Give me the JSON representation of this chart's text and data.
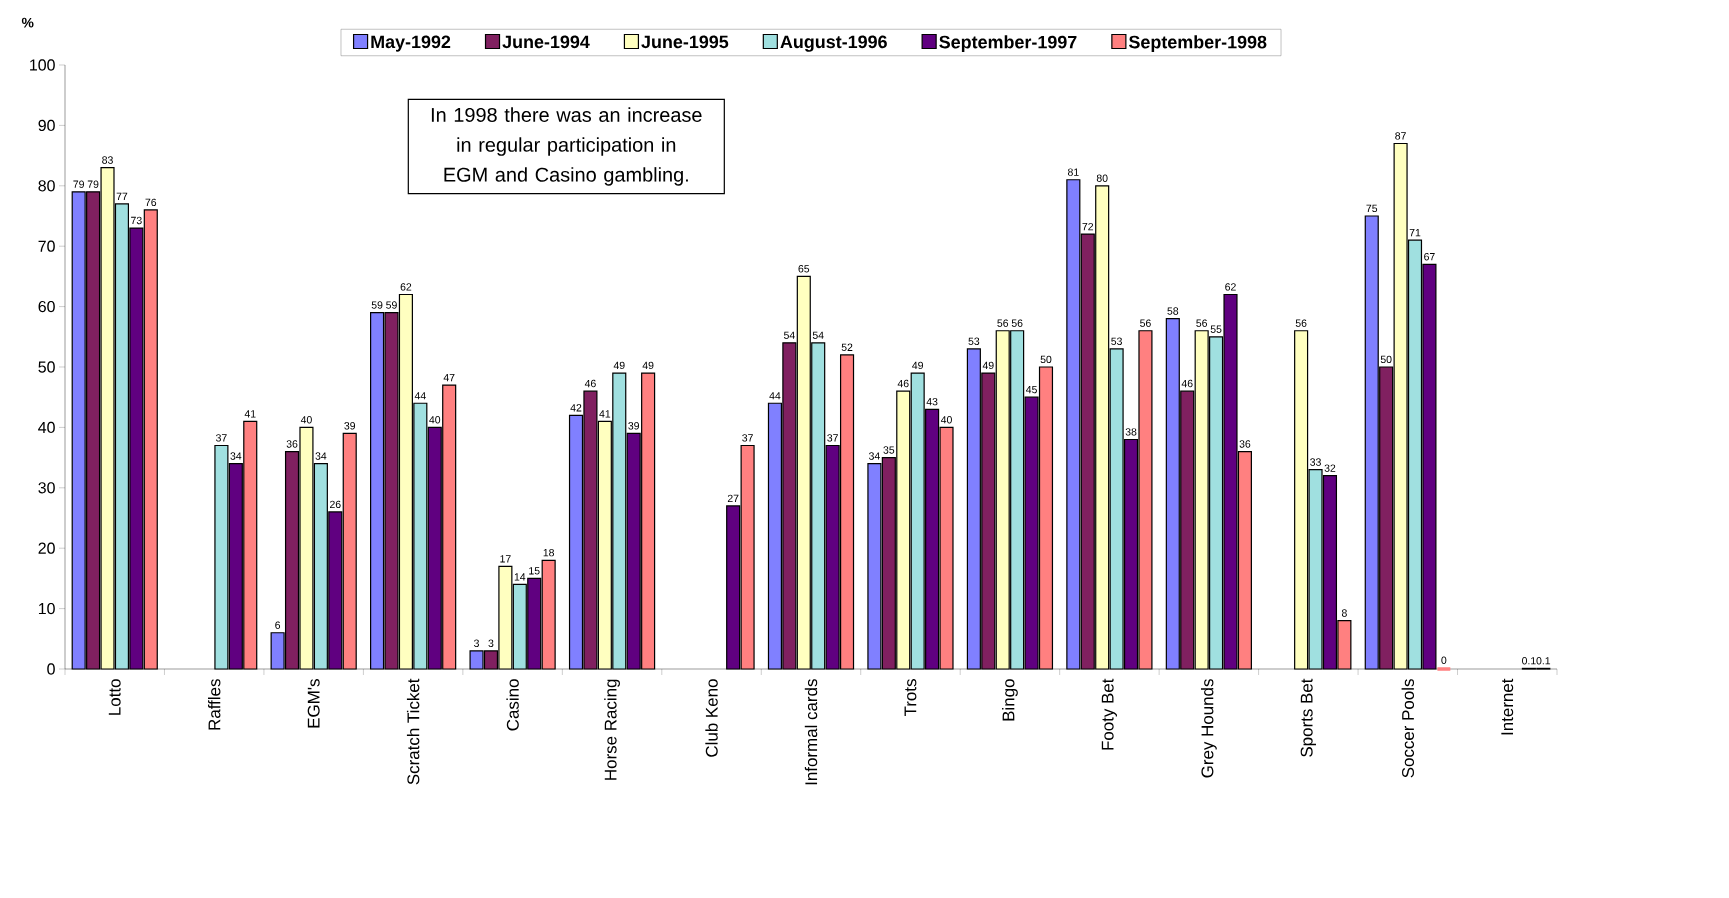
{
  "chart_data": {
    "type": "bar",
    "ylabel": "%",
    "annotations": [
      "In 1998 there was an increase in regular participation in EGM and Casino gambling."
    ],
    "categories": [
      "Lotto",
      "Raffles",
      "EGM's",
      "Scratch Ticket",
      "Casino",
      "Horse Racing",
      "Club Keno",
      "Informal cards",
      "Trots",
      "Bingo",
      "Footy Bet",
      "Grey Hounds",
      "Sports Bet",
      "Soccer Pools",
      "Internet"
    ],
    "series": [
      {
        "name": "May-1992",
        "color": "#8080ff",
        "values": [
          79,
          null,
          6,
          59,
          3,
          42,
          null,
          44,
          34,
          53,
          81,
          58,
          null,
          75,
          null
        ]
      },
      {
        "name": "June-1994",
        "color": "#802060",
        "values": [
          79,
          null,
          36,
          59,
          3,
          46,
          null,
          54,
          35,
          49,
          72,
          46,
          null,
          50,
          null
        ]
      },
      {
        "name": "June-1995",
        "color": "#ffffc0",
        "values": [
          83,
          null,
          40,
          62,
          17,
          41,
          null,
          65,
          46,
          56,
          80,
          56,
          56,
          87,
          null
        ]
      },
      {
        "name": "August-1996",
        "color": "#a0e0e0",
        "values": [
          77,
          37,
          34,
          44,
          14,
          49,
          null,
          54,
          49,
          56,
          53,
          55,
          33,
          71,
          null
        ]
      },
      {
        "name": "September-1997",
        "color": "#600080",
        "values": [
          73,
          34,
          26,
          40,
          15,
          39,
          27,
          37,
          43,
          45,
          38,
          62,
          32,
          67,
          0.1
        ]
      },
      {
        "name": "September-1998",
        "color": "#ff8080",
        "values": [
          76,
          41,
          39,
          47,
          18,
          49,
          37,
          52,
          40,
          50,
          56,
          36,
          8,
          0,
          0.1
        ]
      }
    ],
    "ylim": [
      0,
      100
    ],
    "yticks": [
      0,
      10,
      20,
      30,
      40,
      50,
      60,
      70,
      80,
      90,
      100
    ],
    "data_labels": true,
    "grid": false,
    "legend": "top"
  }
}
